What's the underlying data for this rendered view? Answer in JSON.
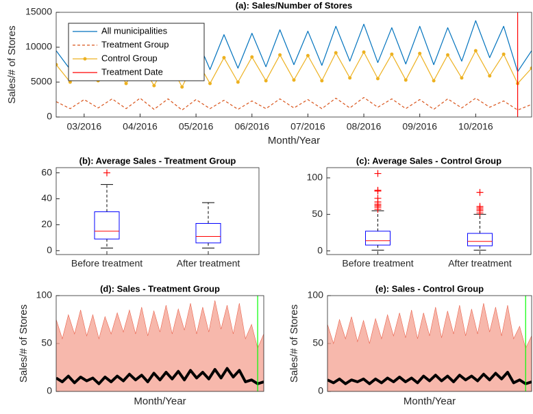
{
  "chart_data": [
    {
      "type": "line",
      "title": "(a): Sales/Number of Stores",
      "ylabel": "Sales/# of Stores",
      "xlabel": "Month/Year",
      "categories": [
        null,
        null,
        "03/2016",
        null,
        null,
        null,
        "04/2016",
        null,
        null,
        null,
        "05/2016",
        null,
        null,
        null,
        "06/2016",
        null,
        null,
        null,
        "07/2016",
        null,
        null,
        null,
        "08/2016",
        null,
        null,
        null,
        "09/2016",
        null,
        null,
        null,
        "10/2016",
        null,
        null,
        null,
        null
      ],
      "ylim": [
        0,
        15000
      ],
      "yticks": [
        0,
        5000,
        10000,
        15000
      ],
      "legend": "upper left",
      "series": [
        {
          "name": "All municipalities",
          "color": "#0072bd",
          "values": [
            9500,
            6800,
            10500,
            7200,
            11000,
            7000,
            10800,
            6500,
            11200,
            6000,
            11500,
            6800,
            11800,
            7000,
            12000,
            7200,
            12500,
            7500,
            12300,
            7400,
            13000,
            8000,
            13300,
            7800,
            12800,
            7600,
            13000,
            7500,
            12800,
            8000,
            13800,
            8500,
            13000,
            6500,
            9500
          ]
        },
        {
          "name": "Treatment Group",
          "color": "#d95319",
          "dash": true,
          "values": [
            2200,
            1200,
            2500,
            1300,
            2600,
            1200,
            2700,
            1100,
            2600,
            1000,
            2500,
            1200,
            2400,
            1100,
            2300,
            1200,
            2600,
            1300,
            2500,
            1200,
            2700,
            1300,
            2800,
            1400,
            2600,
            1200,
            2500,
            1100,
            2600,
            1300,
            2700,
            1400,
            2300,
            1000,
            1800
          ]
        },
        {
          "name": "Control Group",
          "color": "#edb120",
          "marker": true,
          "values": [
            7500,
            5000,
            7800,
            5200,
            8000,
            4800,
            7900,
            4500,
            8200,
            4300,
            8300,
            4800,
            8500,
            5000,
            8600,
            5200,
            8900,
            5300,
            8800,
            5200,
            9200,
            5600,
            9300,
            5500,
            9000,
            5300,
            9100,
            5200,
            8900,
            5600,
            9500,
            5900,
            9000,
            4800,
            7000
          ]
        }
      ],
      "vline": {
        "name": "Treatment Date",
        "at": 33,
        "color": "#ff0000"
      }
    },
    {
      "type": "box",
      "title": "(b): Average Sales - Treatment Group",
      "categories": [
        "Before treatment",
        "After treatment"
      ],
      "ylim": [
        -3,
        64
      ],
      "yticks": [
        0,
        20,
        40,
        60
      ],
      "color": "#0000ff",
      "median_color": "#ff0000",
      "boxes": [
        {
          "whislo": 2,
          "q1": 9,
          "med": 15,
          "q3": 30,
          "whishi": 51,
          "fliers": [
            60
          ]
        },
        {
          "whislo": 2,
          "q1": 6,
          "med": 11,
          "q3": 21,
          "whishi": 37,
          "fliers": []
        }
      ]
    },
    {
      "type": "box",
      "title": "(c): Average Sales - Control Group",
      "categories": [
        "Before treatment",
        "After treatment"
      ],
      "ylim": [
        -5,
        114
      ],
      "yticks": [
        0,
        50,
        100
      ],
      "color": "#0000ff",
      "median_color": "#ff0000",
      "boxes": [
        {
          "whislo": 1,
          "q1": 8,
          "med": 14,
          "q3": 27,
          "whishi": 55,
          "fliers": [
            57,
            60,
            62,
            64,
            67,
            72,
            82,
            83,
            106
          ]
        },
        {
          "whislo": 1,
          "q1": 7,
          "med": 13,
          "q3": 24,
          "whishi": 50,
          "fliers": [
            52,
            55,
            57,
            59,
            61,
            80
          ]
        }
      ]
    },
    {
      "type": "line",
      "title": "(d): Sales - Treatment Group",
      "ylabel": "Sales/# of Stores",
      "xlabel": "Month/Year",
      "ylim": [
        0,
        100
      ],
      "yticks": [
        0,
        50,
        100
      ],
      "series": [
        {
          "color": "#f4a090",
          "area": true,
          "values": [
            75,
            55,
            80,
            60,
            85,
            58,
            80,
            55,
            78,
            60,
            82,
            62,
            85,
            60,
            88,
            58,
            84,
            62,
            90,
            60,
            86,
            64,
            92,
            60,
            88,
            62,
            95,
            65,
            90,
            60,
            92,
            55,
            70,
            45,
            60
          ]
        },
        {
          "color": "#000000",
          "width": 4,
          "values": [
            14,
            10,
            16,
            9,
            15,
            11,
            14,
            8,
            15,
            10,
            16,
            11,
            18,
            12,
            17,
            10,
            19,
            12,
            20,
            13,
            21,
            12,
            22,
            14,
            20,
            13,
            23,
            14,
            24,
            15,
            22,
            10,
            12,
            8,
            10
          ]
        }
      ],
      "vline": {
        "at": 33,
        "color": "#00ff00"
      }
    },
    {
      "type": "line",
      "title": "(e): Sales - Control Group",
      "ylabel": "Sales/# of Stores",
      "xlabel": "Month/Year",
      "ylim": [
        0,
        100
      ],
      "yticks": [
        0,
        50,
        100
      ],
      "series": [
        {
          "color": "#f4a090",
          "area": true,
          "values": [
            70,
            50,
            75,
            55,
            78,
            52,
            74,
            50,
            76,
            55,
            80,
            58,
            82,
            56,
            85,
            55,
            82,
            58,
            88,
            56,
            84,
            60,
            90,
            58,
            86,
            60,
            92,
            62,
            88,
            58,
            90,
            55,
            68,
            45,
            58
          ]
        },
        {
          "color": "#000000",
          "width": 4,
          "values": [
            12,
            9,
            13,
            8,
            12,
            10,
            13,
            8,
            13,
            9,
            14,
            10,
            15,
            10,
            14,
            9,
            16,
            11,
            17,
            11,
            16,
            10,
            17,
            12,
            16,
            11,
            18,
            12,
            19,
            13,
            20,
            9,
            12,
            8,
            10
          ]
        }
      ],
      "vline": {
        "at": 33,
        "color": "#00ff00"
      }
    }
  ]
}
